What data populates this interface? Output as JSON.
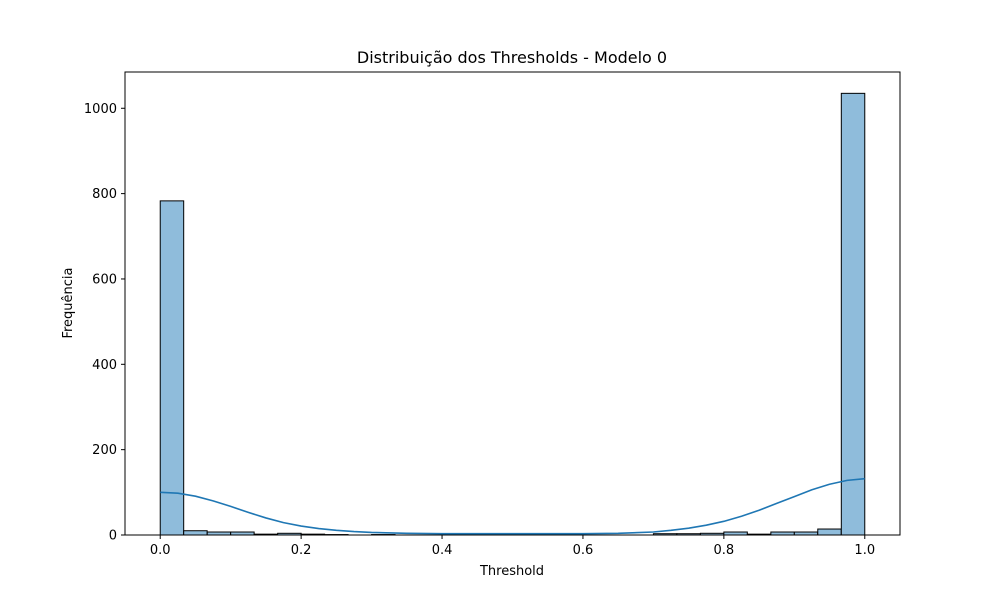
{
  "chart_data": {
    "type": "bar",
    "title": "Distribuição dos Thresholds - Modelo 0",
    "xlabel": "Threshold",
    "ylabel": "Frequência",
    "xlim": [
      -0.05,
      1.05
    ],
    "ylim": [
      0,
      1085
    ],
    "xticks": [
      {
        "value": 0.0,
        "label": "0.0"
      },
      {
        "value": 0.2,
        "label": "0.2"
      },
      {
        "value": 0.4,
        "label": "0.4"
      },
      {
        "value": 0.6,
        "label": "0.6"
      },
      {
        "value": 0.8,
        "label": "0.8"
      },
      {
        "value": 1.0,
        "label": "1.0"
      }
    ],
    "yticks": [
      {
        "value": 0,
        "label": "0"
      },
      {
        "value": 200,
        "label": "200"
      },
      {
        "value": 400,
        "label": "400"
      },
      {
        "value": 600,
        "label": "600"
      },
      {
        "value": 800,
        "label": "800"
      },
      {
        "value": 1000,
        "label": "1000"
      }
    ],
    "bin_width": 0.0333,
    "bins": [
      {
        "x": 0.0,
        "count": 783
      },
      {
        "x": 0.0333,
        "count": 10
      },
      {
        "x": 0.0667,
        "count": 7
      },
      {
        "x": 0.1,
        "count": 7
      },
      {
        "x": 0.1333,
        "count": 2
      },
      {
        "x": 0.1667,
        "count": 4
      },
      {
        "x": 0.2,
        "count": 2
      },
      {
        "x": 0.2333,
        "count": 1
      },
      {
        "x": 0.2667,
        "count": 0
      },
      {
        "x": 0.3,
        "count": 1
      },
      {
        "x": 0.3333,
        "count": 0
      },
      {
        "x": 0.3667,
        "count": 0
      },
      {
        "x": 0.4,
        "count": 0
      },
      {
        "x": 0.4333,
        "count": 0
      },
      {
        "x": 0.4667,
        "count": 0
      },
      {
        "x": 0.5,
        "count": 0
      },
      {
        "x": 0.5333,
        "count": 0
      },
      {
        "x": 0.5667,
        "count": 0
      },
      {
        "x": 0.6,
        "count": 0
      },
      {
        "x": 0.6333,
        "count": 0
      },
      {
        "x": 0.6667,
        "count": 0
      },
      {
        "x": 0.7,
        "count": 3
      },
      {
        "x": 0.7333,
        "count": 3
      },
      {
        "x": 0.7667,
        "count": 4
      },
      {
        "x": 0.8,
        "count": 7
      },
      {
        "x": 0.8333,
        "count": 2
      },
      {
        "x": 0.8667,
        "count": 7
      },
      {
        "x": 0.9,
        "count": 7
      },
      {
        "x": 0.9333,
        "count": 14
      },
      {
        "x": 0.9667,
        "count": 1035
      }
    ],
    "kde": {
      "x": [
        0.0,
        0.025,
        0.05,
        0.075,
        0.1,
        0.125,
        0.15,
        0.175,
        0.2,
        0.225,
        0.25,
        0.275,
        0.3,
        0.35,
        0.4,
        0.45,
        0.5,
        0.55,
        0.6,
        0.65,
        0.7,
        0.725,
        0.75,
        0.775,
        0.8,
        0.825,
        0.85,
        0.875,
        0.9,
        0.925,
        0.95,
        0.975,
        1.0
      ],
      "y": [
        100,
        98,
        91,
        80,
        67,
        53,
        40,
        29,
        21,
        15,
        11,
        8,
        6,
        4,
        3,
        3,
        3,
        3,
        3,
        4,
        7,
        11,
        16,
        23,
        32,
        44,
        58,
        74,
        90,
        106,
        119,
        128,
        132
      ]
    },
    "colors": {
      "bar_fill": "#8fbcdb",
      "bar_edge": "#000000",
      "kde_line": "#1f77b4",
      "axis": "#000000"
    },
    "grid": false,
    "legend": "none"
  }
}
